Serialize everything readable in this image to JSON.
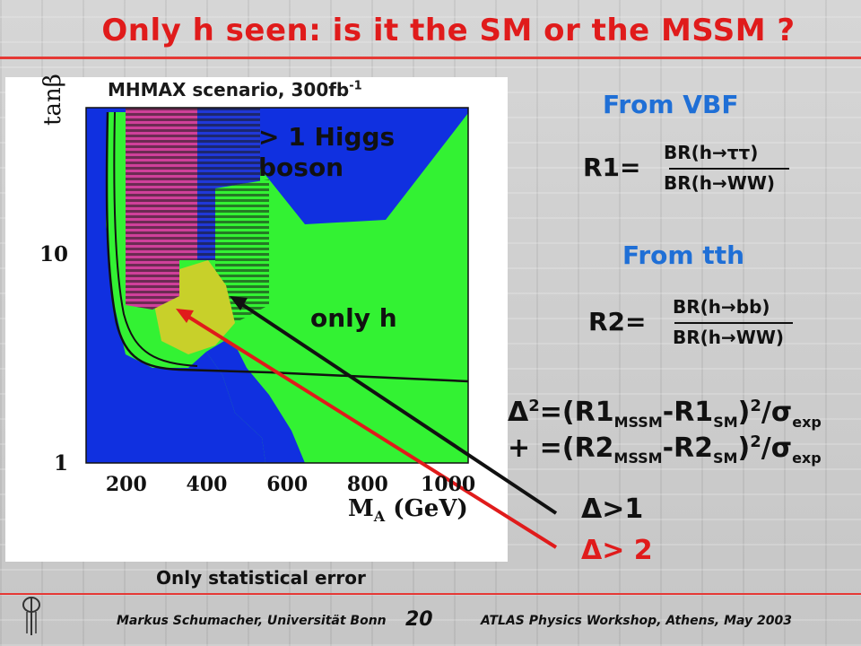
{
  "slide": {
    "title": "Only h seen: is it the SM or the MSSM ?",
    "footer_left": "Markus Schumacher,  Universität Bonn",
    "page_number": "20",
    "footer_right": "ATLAS Physics Workshop, Athens, May 2003"
  },
  "plot": {
    "title_main": "MHMAX scenario, 300fb",
    "title_exp": "-1",
    "region_multi": [
      "> 1 Higgs",
      "boson"
    ],
    "region_single": "only h",
    "footnote": "Only statistical error",
    "colors": {
      "blue": "#1030e0",
      "green": "#33f233",
      "magenta": "#d0409a",
      "yellow": "#c8d02a",
      "black_line": "#111111"
    }
  },
  "chart_data": {
    "type": "heatmap",
    "xlabel": "M",
    "xlabel_sub": "A",
    "xlabel_unit": "(GeV)",
    "ylabel": "tanβ",
    "xlim": [
      100,
      1050
    ],
    "ylim": [
      1,
      50
    ],
    "y_log": true,
    "x_ticks": [
      200,
      400,
      600,
      800,
      1000
    ],
    "y_ticks": [
      1,
      10
    ],
    "regions": [
      {
        "name": "only h",
        "color": "#33f233"
      },
      {
        "name": "> 1 Higgs boson",
        "color": "#1030e0"
      },
      {
        "name": "Δ>1",
        "color": "#111111"
      },
      {
        "name": "Δ> 2",
        "color": "#e01b1b"
      }
    ]
  },
  "right": {
    "vbf_heading": "From VBF",
    "r1_label": "R1=",
    "r1_num": "BR(h→ττ)",
    "r1_den": "BR(h→WW)",
    "tth_heading": "From tth",
    "r2_label": "R2=",
    "r2_num": "BR(h→bb)",
    "r2_den": "BR(h→WW)",
    "eq1_a": "Δ",
    "eq1_b": "2",
    "eq1_c": "=(R1",
    "eq1_d": "MSSM",
    "eq1_e": "-R1",
    "eq1_f": "SM",
    "eq1_g": ")",
    "eq1_h": "2",
    "eq1_i": "/σ",
    "eq1_j": "exp",
    "eq2_a": "+",
    "eq2_c": "=(R2",
    "eq2_d": "MSSM",
    "eq2_e": "-R2",
    "eq2_f": "SM",
    "eq2_g": ")",
    "eq2_h": "2",
    "eq2_i": "/σ",
    "eq2_j": "exp",
    "legend_black": "Δ>1",
    "legend_red": "Δ> 2"
  }
}
